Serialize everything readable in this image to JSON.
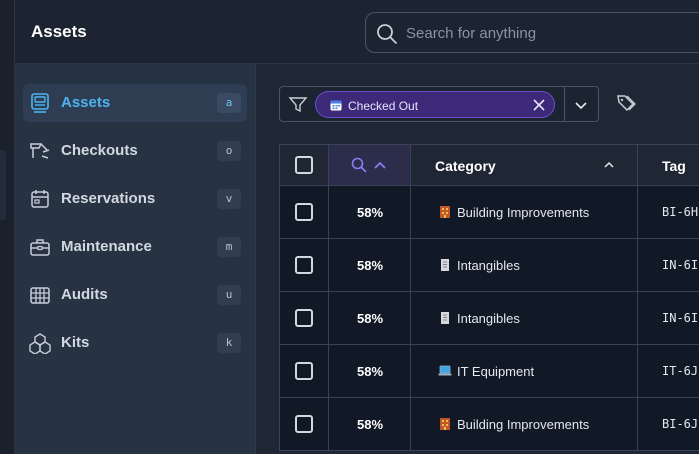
{
  "header": {
    "title": "Assets",
    "search_placeholder": "Search for anything"
  },
  "sidebar": {
    "items": [
      {
        "label": "Assets",
        "shortcut": "a",
        "icon": "assets-icon",
        "active": true
      },
      {
        "label": "Checkouts",
        "shortcut": "o",
        "icon": "checkouts-icon",
        "active": false
      },
      {
        "label": "Reservations",
        "shortcut": "v",
        "icon": "calendar-icon",
        "active": false
      },
      {
        "label": "Maintenance",
        "shortcut": "m",
        "icon": "toolbox-icon",
        "active": false
      },
      {
        "label": "Audits",
        "shortcut": "u",
        "icon": "audit-grid-icon",
        "active": false
      },
      {
        "label": "Kits",
        "shortcut": "k",
        "icon": "boxes-icon",
        "active": false
      }
    ]
  },
  "filter": {
    "chip_label": "Checked Out",
    "chip_icon": "calendar-icon"
  },
  "table": {
    "columns": {
      "category": "Category",
      "tag": "Tag"
    },
    "rows": [
      {
        "percent": "58%",
        "category": "Building Improvements",
        "category_icon": "building-icon",
        "tag": "BI-6H"
      },
      {
        "percent": "58%",
        "category": "Intangibles",
        "category_icon": "document-icon",
        "tag": "IN-6I"
      },
      {
        "percent": "58%",
        "category": "Intangibles",
        "category_icon": "document-icon",
        "tag": "IN-6I"
      },
      {
        "percent": "58%",
        "category": "IT Equipment",
        "category_icon": "laptop-icon",
        "tag": "IT-6J"
      },
      {
        "percent": "58%",
        "category": "Building Improvements",
        "category_icon": "building-icon",
        "tag": "BI-6J"
      }
    ]
  },
  "colors": {
    "accent": "#4cb3f0",
    "chip_bg": "#3c2a78",
    "chip_border": "#6a4fd0",
    "sort_accent": "#8b7cf6"
  }
}
